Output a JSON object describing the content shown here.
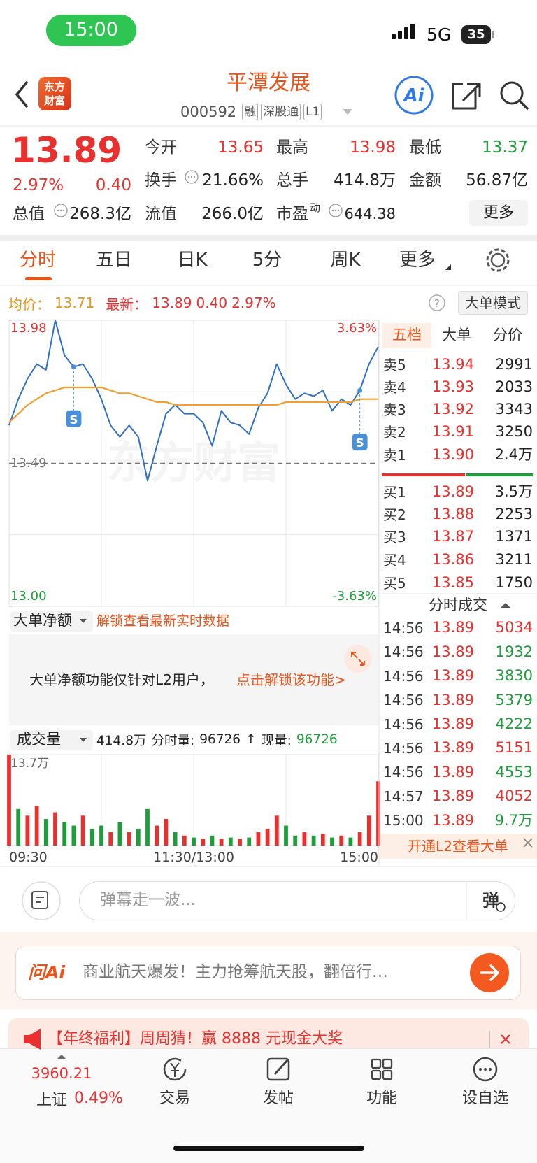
{
  "status_bar": {
    "time": "15:00",
    "network": "5G",
    "battery": "35"
  },
  "header": {
    "logo": [
      "东方",
      "财富"
    ],
    "title": "平潭发展",
    "code": "000592",
    "tags": [
      "融",
      "深股通",
      "L1"
    ]
  },
  "quote": {
    "price": "13.89",
    "change_pct": "2.97%",
    "change": "0.40",
    "fields": [
      {
        "label": "今开",
        "value": "13.65"
      },
      {
        "label": "最高",
        "value": "13.98"
      },
      {
        "label": "最低",
        "value": "13.37"
      },
      {
        "label": "换手",
        "value": "21.66%"
      },
      {
        "label": "总手",
        "value": "414.8万"
      },
      {
        "label": "金额",
        "value": "56.87亿"
      },
      {
        "label": "总值",
        "value": "268.3亿"
      },
      {
        "label": "流值",
        "value": "266.0亿"
      },
      {
        "label": "市盈",
        "sup": "动",
        "value": "644.38"
      }
    ],
    "more": "更多"
  },
  "tabs": [
    "分时",
    "五日",
    "日K",
    "5分",
    "周K",
    "更多"
  ],
  "info_bar": {
    "avg_label": "均价：",
    "avg": "13.71",
    "latest_label": "最新：",
    "latest": "13.89",
    "change": "0.40",
    "change_pct": "2.97%",
    "help": "?",
    "mode": "大单模式"
  },
  "chart_data": [
    {
      "type": "line",
      "watermark": "东方财富",
      "xlim": [
        0,
        240
      ],
      "x": [
        0,
        6,
        12,
        18,
        24,
        30,
        36,
        42,
        48,
        54,
        60,
        66,
        72,
        78,
        84,
        90,
        96,
        102,
        108,
        114,
        120,
        126,
        132,
        138,
        144,
        150,
        156,
        162,
        168,
        174,
        180,
        186,
        192,
        198,
        204,
        210,
        216,
        222,
        228,
        234,
        240
      ],
      "ylim": [
        13.0,
        13.98
      ],
      "yticks": [
        13.98,
        13.49,
        {
          "value": 13,
          "label": "13.00"
        }
      ],
      "y2lim": [
        -3.63,
        3.63
      ],
      "y2ticks": [
        {
          "value": 3.63,
          "label": "3.63%"
        },
        {
          "value": -3.63,
          "label": "-3.63%"
        }
      ],
      "series": [
        {
          "color": "#2f6fc4",
          "values": [
            13.62,
            13.71,
            13.78,
            13.83,
            13.81,
            13.98,
            13.86,
            13.82,
            13.83,
            13.78,
            13.71,
            13.62,
            13.58,
            13.62,
            13.58,
            13.43,
            13.55,
            13.66,
            13.69,
            13.66,
            13.66,
            13.63,
            13.55,
            13.67,
            13.63,
            13.62,
            13.59,
            13.68,
            13.73,
            13.83,
            13.76,
            13.71,
            13.73,
            13.72,
            13.74,
            13.67,
            13.71,
            13.69,
            13.74,
            13.83,
            13.89
          ]
        },
        {
          "color": "#f0a030",
          "values": [
            13.63,
            13.66,
            13.69,
            13.71,
            13.73,
            13.74,
            13.75,
            13.75,
            13.75,
            13.75,
            13.75,
            13.74,
            13.73,
            13.73,
            13.72,
            13.71,
            13.7,
            13.7,
            13.69,
            13.69,
            13.69,
            13.69,
            13.69,
            13.69,
            13.69,
            13.69,
            13.69,
            13.69,
            13.69,
            13.69,
            13.7,
            13.7,
            13.7,
            13.7,
            13.7,
            13.7,
            13.7,
            13.7,
            13.71,
            13.71,
            13.71
          ]
        }
      ],
      "annotations": [
        {
          "x": 42,
          "label": "S"
        },
        {
          "x": 228,
          "label": "S"
        }
      ]
    },
    {
      "type": "bar",
      "xlim": [
        0,
        240
      ],
      "x": [
        0,
        6,
        12,
        18,
        24,
        30,
        36,
        42,
        48,
        54,
        60,
        66,
        72,
        78,
        84,
        90,
        96,
        102,
        108,
        114,
        120,
        126,
        132,
        138,
        144,
        150,
        156,
        162,
        168,
        174,
        180,
        186,
        192,
        198,
        204,
        210,
        216,
        222,
        228,
        234,
        240
      ],
      "xticks": [
        {
          "value": 0,
          "label": "09:30"
        },
        {
          "value": 120,
          "label": "11:30/13:00"
        },
        {
          "value": 240,
          "label": "15:00"
        }
      ],
      "ylim": [
        0,
        137000
      ],
      "yticks": [
        {
          "value": 137000,
          "label": "13.7万"
        }
      ],
      "values": [
        137000,
        55000,
        45000,
        60000,
        40000,
        50000,
        35000,
        30000,
        45000,
        25000,
        30000,
        20000,
        35000,
        20000,
        25000,
        55000,
        30000,
        40000,
        20000,
        15000,
        12000,
        10000,
        15000,
        10000,
        12000,
        10000,
        12000,
        20000,
        25000,
        45000,
        30000,
        15000,
        20000,
        15000,
        18000,
        12000,
        15000,
        12000,
        20000,
        45000,
        96726
      ],
      "colors": [
        "#e8312f",
        "#1e9e3a",
        "#e8312f",
        "#e8312f",
        "#1e9e3a",
        "#e8312f",
        "#1e9e3a",
        "#1e9e3a",
        "#e8312f",
        "#1e9e3a",
        "#1e9e3a",
        "#e8312f",
        "#1e9e3a",
        "#e8312f",
        "#1e9e3a",
        "#1e9e3a",
        "#e8312f",
        "#e8312f",
        "#1e9e3a",
        "#e8312f",
        "#1e9e3a",
        "#e8312f",
        "#1e9e3a",
        "#e8312f",
        "#1e9e3a",
        "#e8312f",
        "#1e9e3a",
        "#e8312f",
        "#e8312f",
        "#e8312f",
        "#1e9e3a",
        "#1e9e3a",
        "#e8312f",
        "#1e9e3a",
        "#e8312f",
        "#1e9e3a",
        "#e8312f",
        "#1e9e3a",
        "#e8312f",
        "#e8312f",
        "#e8312f"
      ]
    }
  ],
  "order_book": {
    "tabs": [
      "五档",
      "大单",
      "分价"
    ],
    "asks": [
      {
        "label": "卖5",
        "price": "13.94",
        "volume": "2991"
      },
      {
        "label": "卖4",
        "price": "13.93",
        "volume": "2033"
      },
      {
        "label": "卖3",
        "price": "13.92",
        "volume": "3343"
      },
      {
        "label": "卖2",
        "price": "13.91",
        "volume": "3250"
      },
      {
        "label": "卖1",
        "price": "13.90",
        "volume": "2.4万"
      }
    ],
    "bids": [
      {
        "label": "买1",
        "price": "13.89",
        "volume": "3.5万"
      },
      {
        "label": "买2",
        "price": "13.88",
        "volume": "2253"
      },
      {
        "label": "买3",
        "price": "13.87",
        "volume": "1371"
      },
      {
        "label": "买4",
        "price": "13.86",
        "volume": "3211"
      },
      {
        "label": "买5",
        "price": "13.85",
        "volume": "1750"
      }
    ]
  },
  "trades": {
    "title": "分时成交",
    "rows": [
      {
        "time": "14:56",
        "price": "13.89",
        "volume": "5034",
        "color": "#e8312f"
      },
      {
        "time": "14:56",
        "price": "13.89",
        "volume": "1932",
        "color": "#1e9e3a"
      },
      {
        "time": "14:56",
        "price": "13.89",
        "volume": "3830",
        "color": "#1e9e3a"
      },
      {
        "time": "14:56",
        "price": "13.89",
        "volume": "5379",
        "color": "#1e9e3a"
      },
      {
        "time": "14:56",
        "price": "13.89",
        "volume": "4222",
        "color": "#1e9e3a"
      },
      {
        "time": "14:56",
        "price": "13.89",
        "volume": "5151",
        "color": "#e8312f"
      },
      {
        "time": "14:56",
        "price": "13.89",
        "volume": "4553",
        "color": "#1e9e3a"
      },
      {
        "time": "14:57",
        "price": "13.89",
        "volume": "4052",
        "color": "#e8312f"
      },
      {
        "time": "15:00",
        "price": "13.89",
        "volume": "9.7万",
        "color": "#1e9e3a"
      }
    ],
    "footer": "开通L2查看大单"
  },
  "net_flow": {
    "selector": "大单净额",
    "unlock_hint": "解锁查看最新实时数据",
    "notice": "大单净额功能仅针对L2用户，",
    "notice_link": "点击解锁该功能>"
  },
  "volume_header": {
    "selector": "成交量",
    "total": "414.8万",
    "period_label": "分时量:",
    "period_volume": "96726",
    "arrow": "↑",
    "current_label": "现量:",
    "current_volume": "96726"
  },
  "comment_bar": {
    "placeholder": "弹幕走一波...",
    "button": "弹"
  },
  "ai_bar": {
    "logo": "问Ai",
    "text": "商业航天爆发！主力抢筹航天股，翻倍行…"
  },
  "banner": {
    "text": "【年终福利】周周猜！赢 8888 元现金大奖"
  },
  "bottom_nav": {
    "index_value": "3960.21",
    "index_name": "上证",
    "index_change": "0.49%",
    "items": [
      "交易",
      "发帖",
      "功能",
      "设自选"
    ]
  }
}
